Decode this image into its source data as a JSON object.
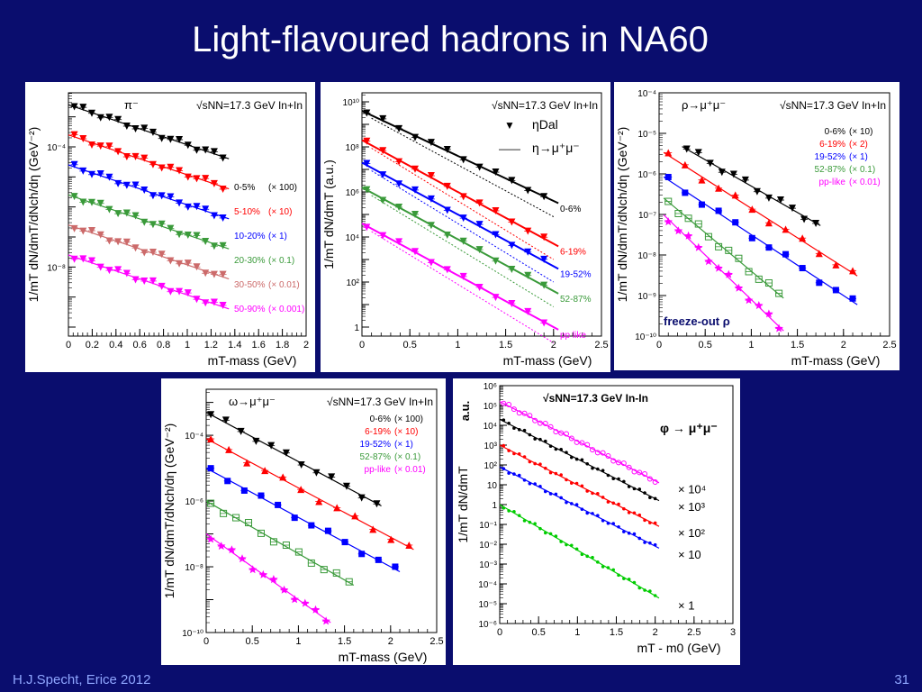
{
  "slide": {
    "title": "Light-flavoured hadrons in NA60",
    "footer_left": "H.J.Specht, Erice 2012",
    "page_number": "31"
  },
  "chart_data": [
    {
      "type": "scatter",
      "particle_label": "π⁻",
      "energy_label": "√sNN=17.3 GeV In+In",
      "xlabel": "mT-mass (GeV)",
      "ylabel": "1/mT dN/dmT/dNch/dη (GeV⁻²)",
      "xlim": [
        0,
        2
      ],
      "ylog": true,
      "ylim_log10": [
        -10.3,
        -2.2
      ],
      "x_ticks": [
        "0",
        "0.2",
        "0.4",
        "0.6",
        "0.8",
        "1",
        "1.2",
        "1.4",
        "1.6",
        "1.8",
        "2"
      ],
      "x_tick_values": [
        0,
        0.2,
        0.4,
        0.6,
        0.8,
        1,
        1.2,
        1.4,
        1.6,
        1.8,
        2
      ],
      "y_tick_labels": [
        {
          "label": "10⁻⁴",
          "exp": -4
        },
        {
          "label": "10⁻⁸",
          "exp": -8
        }
      ],
      "series": [
        {
          "name": "0-5%",
          "factor": "(× 100)",
          "color": "#000000",
          "marker": "triangle-down",
          "y0": -2.6,
          "slope": -1.33,
          "x_max": 1.3
        },
        {
          "name": "5-10%",
          "factor": "(× 10)",
          "color": "#ff0000",
          "marker": "triangle-down",
          "y0": -3.6,
          "slope": -1.33,
          "x_max": 1.3
        },
        {
          "name": "10-20%",
          "factor": "(× 1)",
          "color": "#0000ff",
          "marker": "triangle-down",
          "y0": -4.6,
          "slope": -1.33,
          "x_max": 1.3
        },
        {
          "name": "20-30%",
          "factor": "(× 0.1)",
          "color": "#3a9a3a",
          "marker": "triangle-down",
          "y0": -5.6,
          "slope": -1.33,
          "x_max": 1.3
        },
        {
          "name": "30-50%",
          "factor": "(× 0.01)",
          "color": "#cc6a6a",
          "marker": "triangle-down",
          "y0": -6.6,
          "slope": -1.33,
          "x_max": 1.3
        },
        {
          "name": "50-90%",
          "factor": "(× 0.001)",
          "color": "#ff00ff",
          "marker": "triangle-down",
          "y0": -7.6,
          "slope": -1.33,
          "x_max": 1.3
        }
      ]
    },
    {
      "type": "scatter",
      "energy_label": "√sNN=17.3 GeV In+In",
      "legend": [
        {
          "symbol": "▼",
          "label": "ηDal"
        },
        {
          "symbol": "——",
          "label": "η→μ⁺μ⁻"
        }
      ],
      "xlabel": "mT-mass (GeV)",
      "ylabel": "1/mT dN/dmT (a.u.)",
      "xlim": [
        0,
        2.5
      ],
      "ylog": true,
      "ylim_log10": [
        -0.4,
        10.4
      ],
      "x_ticks": [
        "0",
        "0.5",
        "1",
        "1.5",
        "2",
        "2.5"
      ],
      "x_tick_values": [
        0,
        0.5,
        1,
        1.5,
        2,
        2.5
      ],
      "y_tick_labels": [
        {
          "label": "1",
          "exp": 0
        },
        {
          "label": "10²",
          "exp": 2
        },
        {
          "label": "10⁴",
          "exp": 4
        },
        {
          "label": "10⁶",
          "exp": 6
        },
        {
          "label": "10⁸",
          "exp": 8
        },
        {
          "label": "10¹⁰",
          "exp": 10
        }
      ],
      "series": [
        {
          "name": "0-6%",
          "color": "#000000",
          "marker": "triangle-down",
          "y0": 9.6,
          "slope": -2.0,
          "x_max": 1.9
        },
        {
          "name": "6-19%",
          "color": "#ff0000",
          "marker": "triangle-down",
          "y0": 8.3,
          "slope": -2.3,
          "x_max": 1.9
        },
        {
          "name": "19-52%",
          "color": "#0000ff",
          "marker": "triangle-down",
          "y0": 7.3,
          "slope": -2.3,
          "x_max": 1.9
        },
        {
          "name": "52-87%",
          "color": "#3a9a3a",
          "marker": "triangle-down",
          "y0": 6.2,
          "slope": -2.3,
          "x_max": 1.9
        },
        {
          "name": "pp like",
          "color": "#ff00ff",
          "marker": "triangle-down",
          "y0": 4.6,
          "slope": -2.3,
          "x_max": 1.9
        }
      ]
    },
    {
      "type": "scatter",
      "particle_label": "ρ→μ⁺μ⁻",
      "energy_label": "√sNN=17.3 GeV In+In",
      "annotation": "freeze-out ρ",
      "xlabel": "mT-mass (GeV)",
      "ylabel": "1/mT dN/dmT/dNch/dη (GeV⁻²)",
      "xlim": [
        0,
        2.5
      ],
      "ylog": true,
      "ylim_log10": [
        -10,
        -4
      ],
      "x_ticks": [
        "0",
        "0.5",
        "1",
        "1.5",
        "2",
        "2.5"
      ],
      "x_tick_values": [
        0,
        0.5,
        1,
        1.5,
        2,
        2.5
      ],
      "y_tick_labels": [
        {
          "label": "10⁻¹⁰",
          "exp": -10
        },
        {
          "label": "10⁻⁹",
          "exp": -9
        },
        {
          "label": "10⁻⁸",
          "exp": -8
        },
        {
          "label": "10⁻⁷",
          "exp": -7
        },
        {
          "label": "10⁻⁶",
          "exp": -6
        },
        {
          "label": "10⁻⁵",
          "exp": -5
        },
        {
          "label": "10⁻⁴",
          "exp": -4
        }
      ],
      "series": [
        {
          "name": "0-6%",
          "factor": "(× 10)",
          "color": "#000000",
          "marker": "triangle-down",
          "y0": -5.0,
          "slope": -1.3,
          "x_min": 0.3,
          "x_max": 1.7
        },
        {
          "name": "6-19%",
          "factor": "(× 2)",
          "color": "#ff0000",
          "marker": "triangle-up",
          "y0": -5.4,
          "slope": -1.45,
          "x_min": 0.1,
          "x_max": 2.1
        },
        {
          "name": "19-52%",
          "factor": "(× 1)",
          "color": "#0000ff",
          "marker": "square",
          "y0": -6.0,
          "slope": -1.5,
          "x_min": 0.1,
          "x_max": 2.1
        },
        {
          "name": "52-87%",
          "factor": "(× 0.1)",
          "color": "#3a9a3a",
          "marker": "open-square",
          "y0": -6.5,
          "slope": -1.9,
          "x_min": 0.1,
          "x_max": 1.3
        },
        {
          "name": "pp-like",
          "factor": "(× 0.01)",
          "color": "#ff00ff",
          "marker": "star",
          "y0": -6.9,
          "slope": -2.2,
          "x_min": 0.1,
          "x_max": 1.3
        }
      ]
    },
    {
      "type": "scatter",
      "particle_label": "ω→μ⁺μ⁻",
      "energy_label": "√sNN=17.3 GeV In+In",
      "xlabel": "mT-mass (GeV)",
      "ylabel": "1/mT dN/dmT/dNch/dη (GeV⁻²)",
      "xlim": [
        0,
        2.5
      ],
      "ylog": true,
      "ylim_log10": [
        -10,
        -2.6
      ],
      "x_ticks": [
        "0",
        "0.5",
        "1",
        "1.5",
        "2",
        "2.5"
      ],
      "x_tick_values": [
        0,
        0.5,
        1,
        1.5,
        2,
        2.5
      ],
      "y_tick_labels": [
        {
          "label": "10⁻¹⁰",
          "exp": -10
        },
        {
          "label": "10⁻⁸",
          "exp": -8
        },
        {
          "label": "10⁻⁶",
          "exp": -6
        },
        {
          "label": "10⁻⁴",
          "exp": -4
        }
      ],
      "series": [
        {
          "name": "0-6%",
          "factor": "(× 100)",
          "color": "#000000",
          "marker": "triangle-down",
          "y0": -3.3,
          "slope": -1.5,
          "x_min": 0.05,
          "x_max": 1.85
        },
        {
          "name": "6-19%",
          "factor": "(× 10)",
          "color": "#ff0000",
          "marker": "triangle-up",
          "y0": -4.1,
          "slope": -1.5,
          "x_min": 0.05,
          "x_max": 2.2
        },
        {
          "name": "19-52%",
          "factor": "(× 1)",
          "color": "#0000ff",
          "marker": "square",
          "y0": -5.0,
          "slope": -1.5,
          "x_min": 0.05,
          "x_max": 2.05
        },
        {
          "name": "52-87%",
          "factor": "(× 0.1)",
          "color": "#3a9a3a",
          "marker": "open-square",
          "y0": -6.0,
          "slope": -1.6,
          "x_min": 0.05,
          "x_max": 1.55
        },
        {
          "name": "pp-like",
          "factor": "(× 0.01)",
          "color": "#ff00ff",
          "marker": "star",
          "y0": -7.0,
          "slope": -2.0,
          "x_min": 0.05,
          "x_max": 1.3
        }
      ]
    },
    {
      "type": "scatter",
      "particle_label": "φ → μ⁺μ⁻",
      "energy_label": "√sNN=17.3 GeV In-In",
      "xlabel": "mT - m0 (GeV)",
      "ylabel": "1/mT dN/dmT",
      "ylabel_unit": "a.u.",
      "xlim": [
        0,
        3
      ],
      "ylog": true,
      "ylim_log10": [
        -6,
        6
      ],
      "x_ticks": [
        "0",
        "0.5",
        "1",
        "1.5",
        "2",
        "2.5",
        "3"
      ],
      "x_tick_values": [
        0,
        0.5,
        1,
        1.5,
        2,
        2.5,
        3
      ],
      "y_tick_labels": [
        {
          "label": "10⁻⁶",
          "exp": -6
        },
        {
          "label": "10⁻⁵",
          "exp": -5
        },
        {
          "label": "10⁻⁴",
          "exp": -4
        },
        {
          "label": "10⁻³",
          "exp": -3
        },
        {
          "label": "10⁻²",
          "exp": -2
        },
        {
          "label": "10⁻¹",
          "exp": -1
        },
        {
          "label": "1",
          "exp": 0
        },
        {
          "label": "10",
          "exp": 1
        },
        {
          "label": "10²",
          "exp": 2
        },
        {
          "label": "10³",
          "exp": 3
        },
        {
          "label": "10⁴",
          "exp": 4
        },
        {
          "label": "10⁵",
          "exp": 5
        },
        {
          "label": "10⁶",
          "exp": 6
        }
      ],
      "series": [
        {
          "factor_label": "× 10⁴",
          "color": "#ff00ff",
          "marker": "open-circle",
          "y0": 5.2,
          "slope": -2.0,
          "x_max": 2.0
        },
        {
          "factor_label": "× 10³",
          "color": "#000000",
          "marker": "dot",
          "y0": 4.3,
          "slope": -2.0,
          "x_max": 2.0
        },
        {
          "factor_label": "× 10²",
          "color": "#ff0000",
          "marker": "dot",
          "y0": 3.0,
          "slope": -2.0,
          "x_max": 2.0
        },
        {
          "factor_label": "× 10",
          "color": "#0000ff",
          "marker": "dot",
          "y0": 1.9,
          "slope": -2.0,
          "x_max": 2.0
        },
        {
          "factor_label": "× 1",
          "color": "#00cc00",
          "marker": "dot",
          "y0": 0.0,
          "slope": -2.3,
          "x_max": 2.0
        }
      ]
    }
  ]
}
